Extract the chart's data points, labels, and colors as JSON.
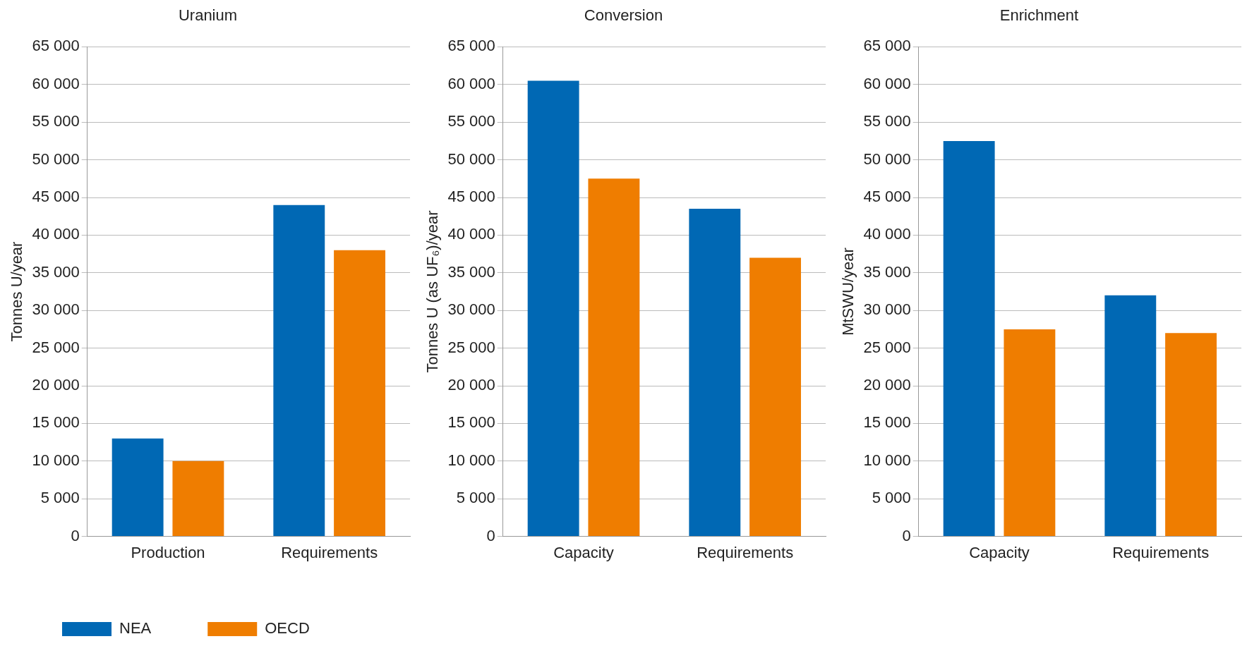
{
  "chart_data": [
    {
      "type": "bar",
      "title": "Uranium",
      "ylabel": "Tonnes U/year",
      "categories": [
        "Production",
        "Requirements"
      ],
      "series": [
        {
          "name": "NEA",
          "color": "#0068b4",
          "values": [
            13000,
            44000
          ]
        },
        {
          "name": "OECD",
          "color": "#ef7d00",
          "values": [
            10000,
            38000
          ]
        }
      ],
      "ylim": [
        0,
        65000
      ],
      "yticks": [
        {
          "value": 0,
          "label": "0"
        },
        {
          "value": 5000,
          "label": "5 000"
        },
        {
          "value": 10000,
          "label": "10 000"
        },
        {
          "value": 15000,
          "label": "15 000"
        },
        {
          "value": 20000,
          "label": "20 000"
        },
        {
          "value": 25000,
          "label": "25 000"
        },
        {
          "value": 30000,
          "label": "30 000"
        },
        {
          "value": 35000,
          "label": "35 000"
        },
        {
          "value": 40000,
          "label": "40 000"
        },
        {
          "value": 45000,
          "label": "45 000"
        },
        {
          "value": 50000,
          "label": "50 000"
        },
        {
          "value": 55000,
          "label": "55 000"
        },
        {
          "value": 60000,
          "label": "60 000"
        },
        {
          "value": 65000,
          "label": "65 000"
        }
      ],
      "grid": "y",
      "legend": "bottom"
    },
    {
      "type": "bar",
      "title": "Conversion",
      "ylabel": "Tonnes U (as UF₆)/year",
      "categories": [
        "Capacity",
        "Requirements"
      ],
      "series": [
        {
          "color": "#0068b4",
          "values": [
            60500,
            43500
          ]
        },
        {
          "color": "#ef7d00",
          "values": [
            47500,
            37000
          ]
        }
      ],
      "ylim": [
        0,
        65000
      ],
      "yticks": [
        {
          "value": 0,
          "label": "0"
        },
        {
          "value": 5000,
          "label": "5 000"
        },
        {
          "value": 10000,
          "label": "10 000"
        },
        {
          "value": 15000,
          "label": "15 000"
        },
        {
          "value": 20000,
          "label": "20 000"
        },
        {
          "value": 25000,
          "label": "25 000"
        },
        {
          "value": 30000,
          "label": "30 000"
        },
        {
          "value": 35000,
          "label": "35 000"
        },
        {
          "value": 40000,
          "label": "40 000"
        },
        {
          "value": 45000,
          "label": "45 000"
        },
        {
          "value": 50000,
          "label": "50 000"
        },
        {
          "value": 55000,
          "label": "55 000"
        },
        {
          "value": 60000,
          "label": "60 000"
        },
        {
          "value": 65000,
          "label": "65 000"
        }
      ],
      "grid": "y"
    },
    {
      "type": "bar",
      "title": "Enrichment",
      "ylabel": "MtSWU/year",
      "categories": [
        "Capacity",
        "Requirements"
      ],
      "series": [
        {
          "color": "#0068b4",
          "values": [
            52500,
            32000
          ]
        },
        {
          "color": "#ef7d00",
          "values": [
            27500,
            27000
          ]
        }
      ],
      "ylim": [
        0,
        65000
      ],
      "yticks": [
        {
          "value": 0,
          "label": "0"
        },
        {
          "value": 5000,
          "label": "5 000"
        },
        {
          "value": 10000,
          "label": "10 000"
        },
        {
          "value": 15000,
          "label": "15 000"
        },
        {
          "value": 20000,
          "label": "20 000"
        },
        {
          "value": 25000,
          "label": "25 000"
        },
        {
          "value": 30000,
          "label": "30 000"
        },
        {
          "value": 35000,
          "label": "35 000"
        },
        {
          "value": 40000,
          "label": "40 000"
        },
        {
          "value": 45000,
          "label": "45 000"
        },
        {
          "value": 50000,
          "label": "50 000"
        },
        {
          "value": 55000,
          "label": "55 000"
        },
        {
          "value": 60000,
          "label": "60 000"
        },
        {
          "value": 65000,
          "label": "65 000"
        }
      ],
      "grid": "y"
    }
  ]
}
